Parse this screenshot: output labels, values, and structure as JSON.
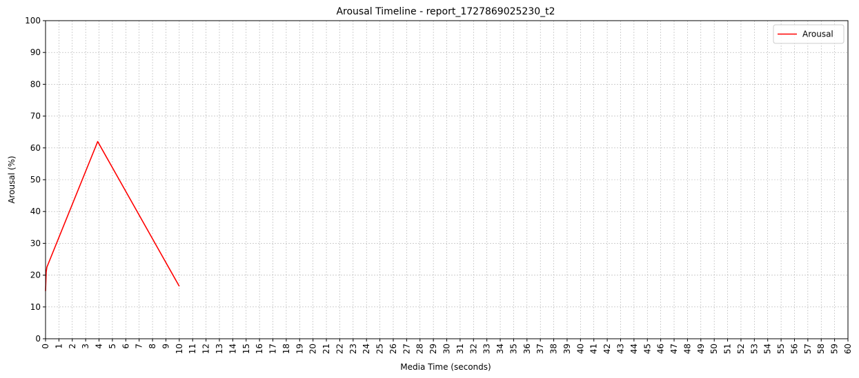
{
  "chart_data": {
    "type": "line",
    "title": "Arousal Timeline - report_1727869025230_t2",
    "xlabel": "Media Time (seconds)",
    "ylabel": "Arousal (%)",
    "xlim": [
      0,
      60
    ],
    "ylim": [
      0,
      100
    ],
    "xticks": [
      0,
      1,
      2,
      3,
      4,
      5,
      6,
      7,
      8,
      9,
      10,
      11,
      12,
      13,
      14,
      15,
      16,
      17,
      18,
      19,
      20,
      21,
      22,
      23,
      24,
      25,
      26,
      27,
      28,
      29,
      30,
      31,
      32,
      33,
      34,
      35,
      36,
      37,
      38,
      39,
      40,
      41,
      42,
      43,
      44,
      45,
      46,
      47,
      48,
      49,
      50,
      51,
      52,
      53,
      54,
      55,
      56,
      57,
      58,
      59,
      60
    ],
    "yticks": [
      0,
      10,
      20,
      30,
      40,
      50,
      60,
      70,
      80,
      90,
      100
    ],
    "grid": true,
    "legend_position": "top-right",
    "series": [
      {
        "name": "Arousal",
        "color": "#ff0000",
        "x": [
          0.0,
          0.05,
          0.1,
          3.9,
          10.0
        ],
        "y": [
          15,
          21,
          22.5,
          62,
          16.5
        ]
      }
    ]
  }
}
